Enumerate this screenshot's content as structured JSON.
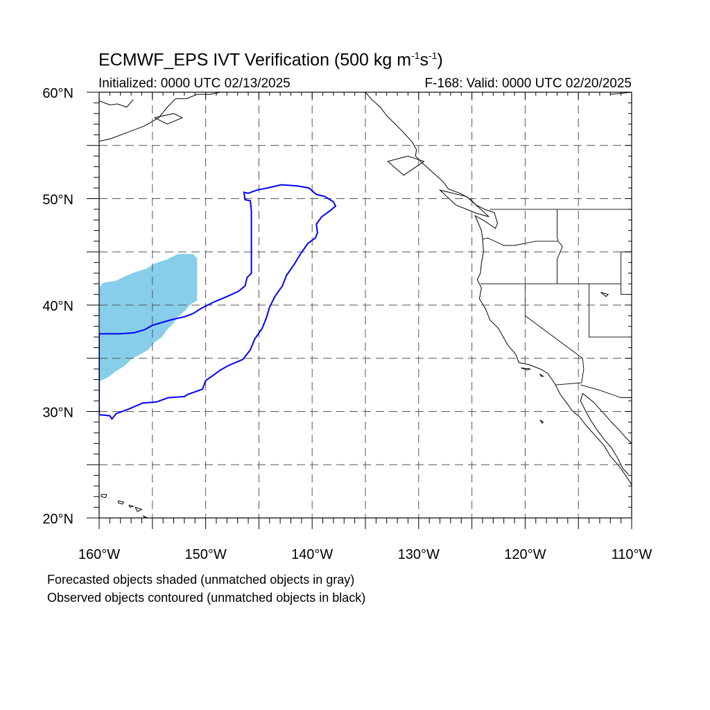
{
  "header": {
    "title_main": "ECMWF_EPS IVT Verification (500 kg m",
    "title_exp1": "-1",
    "title_mid": "s",
    "title_exp2": "-1",
    "title_end": ")",
    "initialized": "Initialized: 0000 UTC 02/13/2025",
    "valid": "F-168: Valid: 0000 UTC 02/20/2025"
  },
  "map": {
    "lon_range": [
      -160,
      -110
    ],
    "lat_range": [
      20,
      60
    ],
    "x_tick_labels": [
      {
        "lon": -160,
        "label": "160°W"
      },
      {
        "lon": -150,
        "label": "150°W"
      },
      {
        "lon": -140,
        "label": "140°W"
      },
      {
        "lon": -130,
        "label": "130°W"
      },
      {
        "lon": -120,
        "label": "120°W"
      },
      {
        "lon": -110,
        "label": "110°W"
      }
    ],
    "y_tick_labels": [
      {
        "lat": 20,
        "label": "20°N"
      },
      {
        "lat": 30,
        "label": "30°N"
      },
      {
        "lat": 40,
        "label": "40°N"
      },
      {
        "lat": 50,
        "label": "50°N"
      },
      {
        "lat": 60,
        "label": "60°N"
      }
    ],
    "grid_interval_deg": 5,
    "grid_style": "dashed",
    "colors": {
      "forecast_fill": "#87CEEB",
      "observed_contour": "#0000ff",
      "coastline": "#000000",
      "grid": "#555555"
    },
    "forecast_object": [
      [
        -160,
        32.8
      ],
      [
        -160,
        41.7
      ],
      [
        -159.6,
        42.1
      ],
      [
        -158.4,
        42.3
      ],
      [
        -157.6,
        42.7
      ],
      [
        -156.6,
        43.1
      ],
      [
        -155.6,
        43.4
      ],
      [
        -154.8,
        43.9
      ],
      [
        -153.6,
        44.3
      ],
      [
        -152.6,
        44.8
      ],
      [
        -151.2,
        44.8
      ],
      [
        -150.8,
        44.4
      ],
      [
        -150.8,
        40.4
      ],
      [
        -151.4,
        40.1
      ],
      [
        -151.9,
        39.5
      ],
      [
        -152.6,
        38.9
      ],
      [
        -153.1,
        38.2
      ],
      [
        -153.6,
        37.7
      ],
      [
        -154.1,
        37.0
      ],
      [
        -154.8,
        36.5
      ],
      [
        -155.4,
        35.8
      ],
      [
        -156.1,
        35.4
      ],
      [
        -157.0,
        34.9
      ],
      [
        -157.6,
        34.3
      ],
      [
        -158.4,
        33.8
      ],
      [
        -159.2,
        33.2
      ]
    ],
    "observed_object": [
      [
        -160,
        29.7
      ],
      [
        -159.0,
        29.6
      ],
      [
        -158.8,
        29.3
      ],
      [
        -158.4,
        29.8
      ],
      [
        -157.3,
        30.2
      ],
      [
        -155.9,
        30.8
      ],
      [
        -154.6,
        30.9
      ],
      [
        -153.5,
        31.3
      ],
      [
        -152.0,
        31.4
      ],
      [
        -151.7,
        31.6
      ],
      [
        -150.3,
        32.1
      ],
      [
        -150.0,
        32.9
      ],
      [
        -149.3,
        33.4
      ],
      [
        -148.6,
        33.9
      ],
      [
        -147.9,
        34.3
      ],
      [
        -146.5,
        34.9
      ],
      [
        -145.8,
        35.8
      ],
      [
        -145.4,
        36.8
      ],
      [
        -144.7,
        37.8
      ],
      [
        -144.3,
        38.8
      ],
      [
        -144.0,
        39.8
      ],
      [
        -143.5,
        40.8
      ],
      [
        -142.8,
        41.8
      ],
      [
        -142.4,
        42.8
      ],
      [
        -141.7,
        43.8
      ],
      [
        -141.1,
        44.8
      ],
      [
        -140.4,
        45.8
      ],
      [
        -139.7,
        46.3
      ],
      [
        -139.5,
        46.8
      ],
      [
        -139.6,
        47.6
      ],
      [
        -139.1,
        48.3
      ],
      [
        -138.4,
        48.8
      ],
      [
        -137.8,
        49.3
      ],
      [
        -138.0,
        49.7
      ],
      [
        -138.8,
        50.2
      ],
      [
        -139.6,
        50.4
      ],
      [
        -140.3,
        51.0
      ],
      [
        -141.4,
        51.2
      ],
      [
        -142.9,
        51.3
      ],
      [
        -144.2,
        51.0
      ],
      [
        -145.2,
        50.8
      ],
      [
        -146.0,
        50.5
      ],
      [
        -146.4,
        50.6
      ],
      [
        -146.3,
        49.9
      ],
      [
        -145.8,
        49.8
      ],
      [
        -145.7,
        48.8
      ],
      [
        -145.7,
        43.0
      ],
      [
        -146.1,
        42.6
      ],
      [
        -146.3,
        41.8
      ],
      [
        -146.9,
        41.3
      ],
      [
        -148.0,
        40.8
      ],
      [
        -149.2,
        40.3
      ],
      [
        -150.4,
        39.7
      ],
      [
        -151.2,
        39.2
      ],
      [
        -152.0,
        38.9
      ],
      [
        -153.3,
        38.6
      ],
      [
        -155.0,
        38.1
      ],
      [
        -155.7,
        37.7
      ],
      [
        -156.7,
        37.4
      ],
      [
        -158.0,
        37.3
      ],
      [
        -160,
        37.3
      ]
    ],
    "coastline": [
      [
        -112,
        59.8
      ],
      [
        -110,
        60
      ],
      [
        -135,
        60
      ],
      [
        -134.4,
        59.3
      ],
      [
        -133.6,
        58.6
      ],
      [
        -133.0,
        57.8
      ],
      [
        -132.3,
        57.1
      ],
      [
        -131.5,
        56.3
      ],
      [
        -130.6,
        55.3
      ],
      [
        -130.2,
        54.6
      ],
      [
        -130.3,
        54.0
      ],
      [
        -129.6,
        53.3
      ],
      [
        -128.6,
        52.4
      ],
      [
        -127.7,
        51.6
      ],
      [
        -127.2,
        50.9
      ],
      [
        -126.1,
        50.5
      ],
      [
        -125.2,
        50.0
      ],
      [
        -124.6,
        49.4
      ],
      [
        -123.8,
        49.0
      ],
      [
        -122.9,
        48.7
      ],
      [
        -122.6,
        47.7
      ],
      [
        -122.8,
        47.2
      ],
      [
        -123.8,
        47.9
      ],
      [
        -124.7,
        48.4
      ],
      [
        -124.1,
        47.0
      ],
      [
        -124.0,
        46.2
      ],
      [
        -123.9,
        45.0
      ],
      [
        -124.1,
        44.0
      ],
      [
        -124.2,
        43.0
      ],
      [
        -124.5,
        42.4
      ],
      [
        -124.1,
        41.6
      ],
      [
        -124.3,
        40.6
      ],
      [
        -123.7,
        39.6
      ],
      [
        -123.3,
        38.6
      ],
      [
        -122.5,
        37.8
      ],
      [
        -122.0,
        36.9
      ],
      [
        -121.6,
        36.2
      ],
      [
        -120.9,
        35.4
      ],
      [
        -120.6,
        34.6
      ],
      [
        -119.6,
        34.4
      ],
      [
        -118.6,
        34.0
      ],
      [
        -117.9,
        33.6
      ],
      [
        -117.2,
        32.6
      ],
      [
        -116.7,
        31.6
      ],
      [
        -116.1,
        30.8
      ],
      [
        -115.6,
        30.1
      ],
      [
        -114.9,
        29.5
      ],
      [
        -114.2,
        28.6
      ],
      [
        -113.3,
        27.6
      ],
      [
        -112.6,
        26.8
      ],
      [
        -112.0,
        25.8
      ],
      [
        -111.2,
        24.9
      ],
      [
        -110.3,
        23.6
      ],
      [
        -110.0,
        23.1
      ]
    ],
    "baja_east": [
      [
        -110.0,
        27.0
      ],
      [
        -110.6,
        27.6
      ],
      [
        -111.3,
        28.4
      ],
      [
        -111.9,
        29.0
      ],
      [
        -112.6,
        29.8
      ],
      [
        -113.6,
        30.9
      ],
      [
        -114.6,
        31.7
      ],
      [
        -114.8,
        31.0
      ],
      [
        -114.3,
        30.0
      ],
      [
        -113.8,
        29.1
      ],
      [
        -113.2,
        28.2
      ],
      [
        -112.6,
        27.4
      ],
      [
        -111.9,
        26.6
      ],
      [
        -111.3,
        25.6
      ],
      [
        -110.8,
        24.6
      ],
      [
        -110.3,
        24.1
      ]
    ],
    "borders": [
      [
        [
          -123.3,
          49.0
        ],
        [
          -110,
          49.0
        ]
      ],
      [
        [
          -117.0,
          49.0
        ],
        [
          -117.0,
          46.4
        ],
        [
          -116.9,
          46.0
        ],
        [
          -119.0,
          46.0
        ],
        [
          -121.0,
          45.6
        ],
        [
          -122.0,
          45.6
        ],
        [
          -123.5,
          46.3
        ],
        [
          -124.0,
          46.2
        ]
      ],
      [
        [
          -124.2,
          42.0
        ],
        [
          -111.0,
          42.0
        ]
      ],
      [
        [
          -117.0,
          42.0
        ],
        [
          -117.0,
          44.3
        ],
        [
          -116.5,
          45.5
        ],
        [
          -116.9,
          46.0
        ]
      ],
      [
        [
          -120.0,
          42.0
        ],
        [
          -120.0,
          39.0
        ],
        [
          -114.6,
          35.0
        ]
      ],
      [
        [
          -114.0,
          42.0
        ],
        [
          -114.0,
          37.0
        ],
        [
          -110,
          37.0
        ]
      ],
      [
        [
          -114.6,
          35.0
        ],
        [
          -114.5,
          34.0
        ],
        [
          -114.7,
          32.7
        ],
        [
          -117.1,
          32.5
        ]
      ],
      [
        [
          -114.8,
          32.5
        ],
        [
          -113.0,
          32.0
        ],
        [
          -111.0,
          31.3
        ],
        [
          -110,
          31.3
        ]
      ],
      [
        [
          -111.0,
          45.0
        ],
        [
          -110,
          45.0
        ]
      ],
      [
        [
          -111.0,
          45.0
        ],
        [
          -111.0,
          41.0
        ],
        [
          -110,
          41.0
        ]
      ]
    ],
    "islands": [
      [
        [
          -159.8,
          22.2
        ],
        [
          -159.3,
          22.2
        ],
        [
          -159.4,
          21.9
        ],
        [
          -159.8,
          22.0
        ],
        [
          -159.8,
          22.2
        ]
      ],
      [
        [
          -158.2,
          21.6
        ],
        [
          -157.7,
          21.5
        ],
        [
          -157.8,
          21.3
        ],
        [
          -158.2,
          21.4
        ],
        [
          -158.2,
          21.6
        ]
      ],
      [
        [
          -157.2,
          21.2
        ],
        [
          -156.8,
          21.1
        ],
        [
          -157.1,
          21.0
        ],
        [
          -157.2,
          21.2
        ]
      ],
      [
        [
          -156.6,
          21.0
        ],
        [
          -156.0,
          20.8
        ],
        [
          -156.4,
          20.6
        ],
        [
          -156.6,
          21.0
        ]
      ],
      [
        [
          -155.9,
          20.2
        ],
        [
          -155.0,
          19.8
        ],
        [
          -155.5,
          19.9
        ],
        [
          -155.9,
          20.2
        ]
      ],
      [
        [
          -129.5,
          53.5
        ],
        [
          -131.0,
          54.0
        ],
        [
          -132.9,
          53.5
        ],
        [
          -131.4,
          52.2
        ],
        [
          -129.5,
          53.5
        ]
      ],
      [
        [
          -128.0,
          50.8
        ],
        [
          -125.5,
          50.2
        ],
        [
          -123.4,
          48.3
        ],
        [
          -124.5,
          48.6
        ],
        [
          -126.5,
          49.4
        ],
        [
          -128.0,
          50.8
        ]
      ],
      [
        [
          -120.4,
          34.1
        ],
        [
          -119.5,
          34.0
        ],
        [
          -119.8,
          33.9
        ],
        [
          -120.4,
          34.1
        ]
      ],
      [
        [
          -118.6,
          33.5
        ],
        [
          -118.3,
          33.3
        ],
        [
          -118.5,
          33.3
        ],
        [
          -118.6,
          33.5
        ]
      ],
      [
        [
          -118.6,
          29.2
        ],
        [
          -118.3,
          29.0
        ],
        [
          -118.4,
          28.9
        ],
        [
          -118.6,
          29.2
        ]
      ],
      [
        [
          -112.9,
          41.2
        ],
        [
          -112.2,
          41.0
        ],
        [
          -112.4,
          40.8
        ],
        [
          -112.9,
          41.2
        ]
      ]
    ],
    "alaska": [
      [
        [
          -160,
          55.4
        ],
        [
          -159.0,
          55.6
        ],
        [
          -157.4,
          56.2
        ],
        [
          -155.8,
          56.8
        ],
        [
          -154.4,
          57.6
        ],
        [
          -153.6,
          58.6
        ],
        [
          -152.8,
          59.4
        ],
        [
          -151.8,
          59.4
        ],
        [
          -150.8,
          59.8
        ],
        [
          -149.6,
          59.8
        ],
        [
          -148.6,
          60.0
        ]
      ],
      [
        [
          -160,
          59.2
        ],
        [
          -159.0,
          58.8
        ],
        [
          -158.3,
          58.9
        ],
        [
          -157.4,
          58.6
        ],
        [
          -156.8,
          59.3
        ]
      ],
      [
        [
          -154.8,
          57.6
        ],
        [
          -153.0,
          58.0
        ],
        [
          -152.2,
          57.6
        ],
        [
          -153.6,
          57.0
        ],
        [
          -154.8,
          57.6
        ]
      ]
    ]
  },
  "footer": {
    "line1": "Forecasted objects shaded (unmatched objects in gray)",
    "line2": "Observed objects contoured (unmatched objects in black)"
  }
}
